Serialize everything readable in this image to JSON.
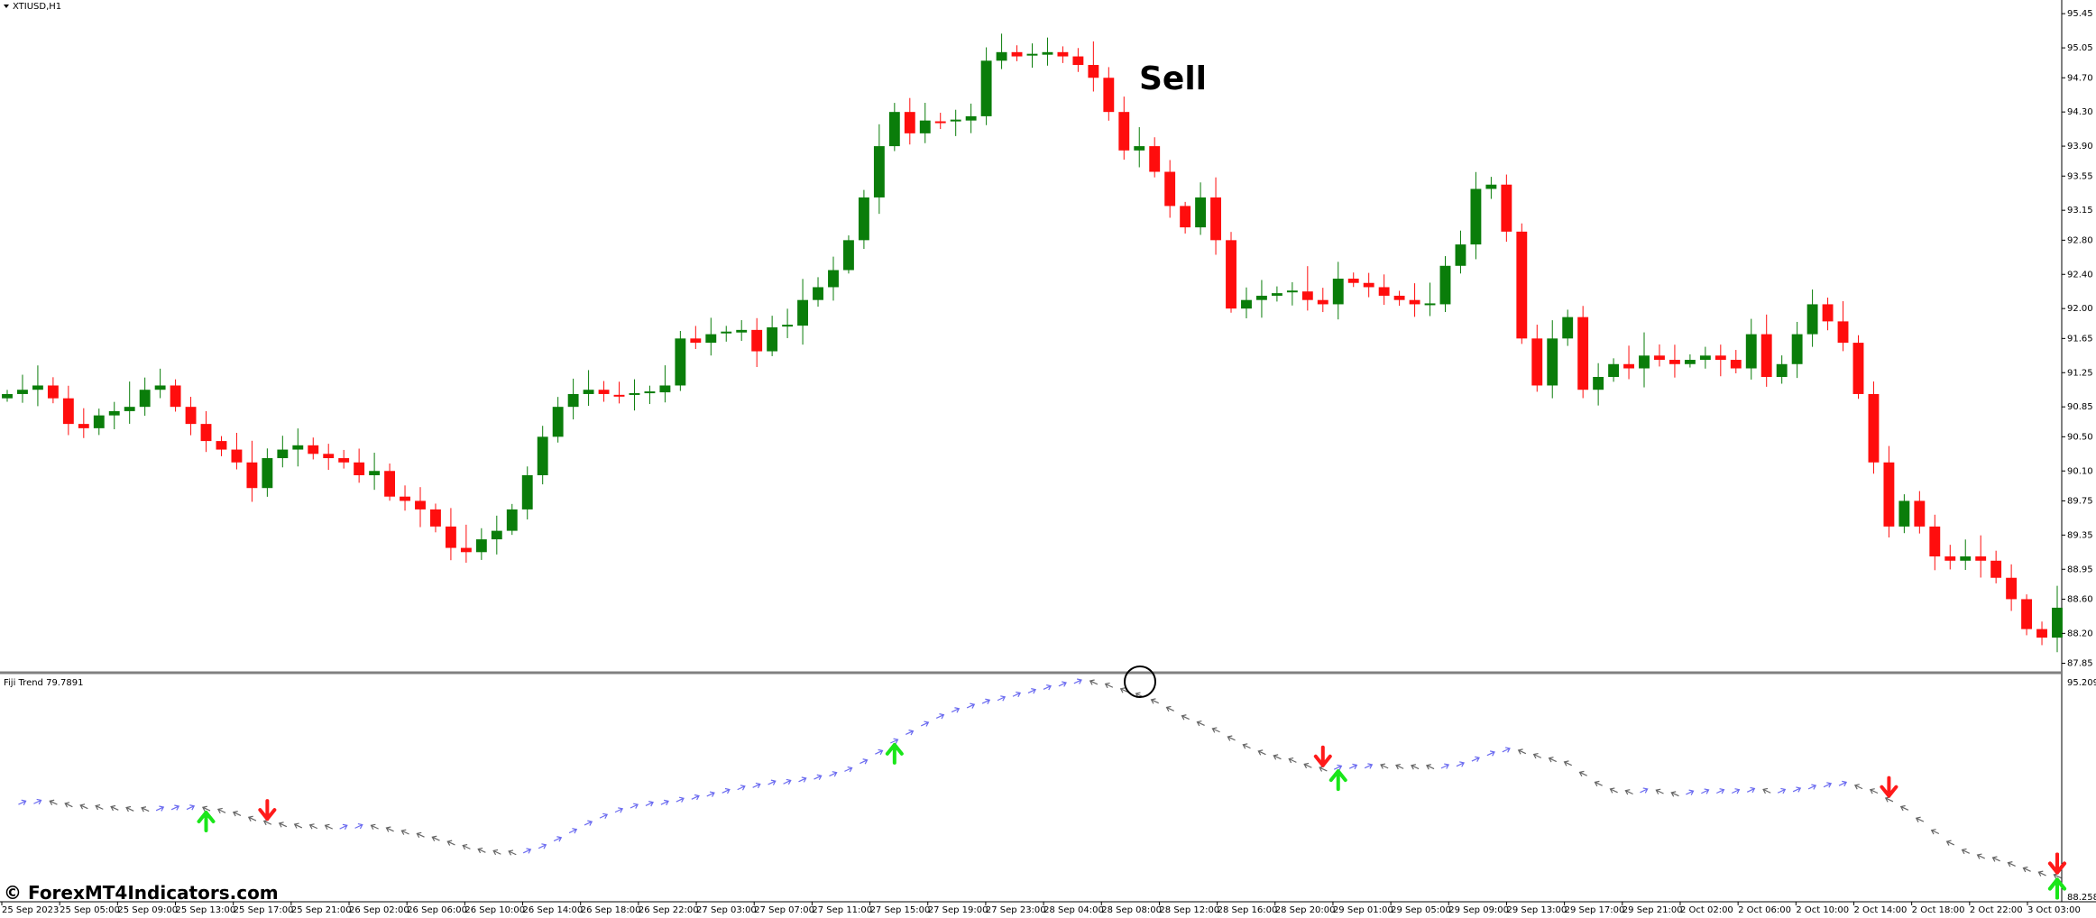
{
  "window": {
    "symbol_title": "XTIUSD,H1",
    "indicator_title": "Fiji Trend 79.7891"
  },
  "annotation": {
    "sell_label": "Sell"
  },
  "watermark": "© ForexMT4Indicators.com",
  "colors": {
    "bull": "#0a7d0a",
    "bear": "#ff0d0d",
    "arrow_up": "#19e619",
    "arrow_down": "#ff1a1a",
    "trend_up": "#6b6bf0",
    "trend_down": "#666666",
    "separator": "#808080"
  },
  "chart_data": [
    {
      "type": "candlestick",
      "title": "XTIUSD,H1",
      "ylim": [
        87.75,
        95.61
      ],
      "y_ticks": [
        "95.45",
        "95.05",
        "94.70",
        "94.30",
        "93.90",
        "93.55",
        "93.15",
        "92.80",
        "92.40",
        "92.00",
        "91.65",
        "91.25",
        "90.85",
        "90.50",
        "90.10",
        "89.75",
        "89.35",
        "88.95",
        "88.60",
        "88.20",
        "87.85"
      ],
      "x_ticks": [
        "25 Sep 2023",
        "25 Sep 05:00",
        "25 Sep 09:00",
        "25 Sep 13:00",
        "25 Sep 17:00",
        "25 Sep 21:00",
        "26 Sep 02:00",
        "26 Sep 06:00",
        "26 Sep 10:00",
        "26 Sep 14:00",
        "26 Sep 18:00",
        "26 Sep 22:00",
        "27 Sep 03:00",
        "27 Sep 07:00",
        "27 Sep 11:00",
        "27 Sep 15:00",
        "27 Sep 19:00",
        "27 Sep 23:00",
        "28 Sep 04:00",
        "28 Sep 08:00",
        "28 Sep 12:00",
        "28 Sep 16:00",
        "28 Sep 20:00",
        "29 Sep 01:00",
        "29 Sep 05:00",
        "29 Sep 09:00",
        "29 Sep 13:00",
        "29 Sep 17:00",
        "29 Sep 21:00",
        "2 Oct 02:00",
        "2 Oct 06:00",
        "2 Oct 10:00",
        "2 Oct 14:00",
        "2 Oct 18:00",
        "2 Oct 22:00",
        "3 Oct 03:00"
      ],
      "close_path": [
        91.0,
        91.05,
        91.1,
        90.95,
        90.65,
        90.6,
        90.75,
        90.8,
        90.85,
        91.05,
        91.1,
        90.85,
        90.65,
        90.45,
        90.35,
        90.2,
        89.9,
        90.25,
        90.35,
        90.4,
        90.3,
        90.25,
        90.2,
        90.05,
        90.1,
        89.8,
        89.75,
        89.65,
        89.45,
        89.2,
        89.15,
        89.3,
        89.4,
        89.65,
        90.05,
        90.5,
        90.85,
        91.0,
        91.05,
        91.0,
        90.98,
        91.0,
        91.02,
        91.1,
        91.65,
        91.6,
        91.7,
        91.72,
        91.75,
        91.5,
        91.78,
        91.8,
        92.1,
        92.25,
        92.45,
        92.8,
        93.3,
        93.9,
        94.3,
        94.05,
        94.2,
        94.18,
        94.2,
        94.25,
        94.9,
        95.0,
        94.95,
        94.97,
        95.0,
        94.95,
        94.85,
        94.7,
        94.3,
        93.85,
        93.9,
        93.6,
        93.2,
        92.95,
        93.3,
        92.8,
        92.0,
        92.1,
        92.15,
        92.18,
        92.2,
        92.1,
        92.05,
        92.35,
        92.3,
        92.25,
        92.15,
        92.1,
        92.05,
        92.05,
        92.5,
        92.75,
        93.4,
        93.45,
        92.9,
        91.65,
        91.1,
        91.65,
        91.9,
        91.05,
        91.2,
        91.35,
        91.3,
        91.45,
        91.4,
        91.35,
        91.4,
        91.45,
        91.4,
        91.3,
        91.7,
        91.2,
        91.35,
        91.7,
        92.05,
        91.85,
        91.6,
        91.0,
        90.2,
        89.45,
        89.75,
        89.45,
        89.1,
        89.05,
        89.1,
        89.05,
        88.85,
        88.6,
        88.25,
        88.15,
        88.5
      ],
      "last_rendered_close": 88.5
    },
    {
      "type": "line",
      "title": "Fiji Trend 79.7891",
      "ylim": [
        88.258,
        95.209
      ],
      "y_ticks": [
        "95.209",
        "88.258"
      ],
      "series": [
        {
          "values": [
            90.85,
            90.85,
            90.85,
            90.85,
            90.85,
            90.85,
            90.85,
            90.85,
            90.85,
            90.85,
            90.85,
            90.85,
            90.85,
            90.85,
            90.85,
            90.85,
            90.85,
            90.85,
            90.85,
            90.85,
            90.85,
            90.85,
            90.85,
            90.85,
            90.85,
            90.85,
            90.85,
            90.85,
            90.85,
            90.85,
            90.85,
            90.85,
            90.85,
            90.85,
            90.85,
            90.85,
            90.85,
            90.85,
            90.85,
            90.85,
            90.85,
            90.85,
            90.85,
            90.85,
            90.85,
            90.85,
            90.85,
            90.85,
            90.85,
            90.85,
            90.85,
            90.85,
            90.85,
            90.85,
            90.85,
            90.85,
            90.85,
            90.85,
            90.85,
            90.85,
            90.85,
            90.85,
            90.85,
            90.85,
            90.85,
            90.85,
            90.85,
            90.85,
            90.85,
            90.85,
            90.85,
            90.85,
            90.85,
            90.85,
            90.85,
            90.85,
            90.85,
            90.85,
            90.85,
            90.85,
            90.85,
            90.85,
            90.85,
            90.85,
            90.85,
            90.85,
            90.85,
            90.85,
            90.85,
            90.85,
            90.85,
            90.85,
            90.85,
            90.85,
            90.85,
            90.85,
            90.85,
            90.85,
            90.85,
            90.85,
            90.85,
            90.85,
            90.85,
            90.85,
            90.85,
            90.85,
            90.85,
            90.85,
            90.85,
            90.85,
            90.85,
            90.85,
            90.85,
            90.85,
            90.85,
            90.85,
            90.85,
            90.85,
            90.85,
            90.85,
            90.85,
            90.85,
            90.85,
            90.85,
            90.85,
            90.85,
            90.85,
            90.85,
            90.85,
            90.85,
            90.85
          ]
        }
      ],
      "signals": [
        {
          "type": "buy",
          "index": 10
        },
        {
          "type": "sell",
          "index": 13
        },
        {
          "type": "buy",
          "index": 46
        },
        {
          "type": "sell",
          "index": 69
        },
        {
          "type": "buy",
          "index": 70
        },
        {
          "type": "sell",
          "index": 78
        },
        {
          "type": "buy",
          "index": 125
        },
        {
          "type": "sell",
          "index": 132
        },
        {
          "type": "buy",
          "index": 152
        },
        {
          "type": "sell",
          "index": 156
        },
        {
          "type": "buy",
          "index": 160
        },
        {
          "type": "sell",
          "index": 164
        }
      ]
    }
  ]
}
